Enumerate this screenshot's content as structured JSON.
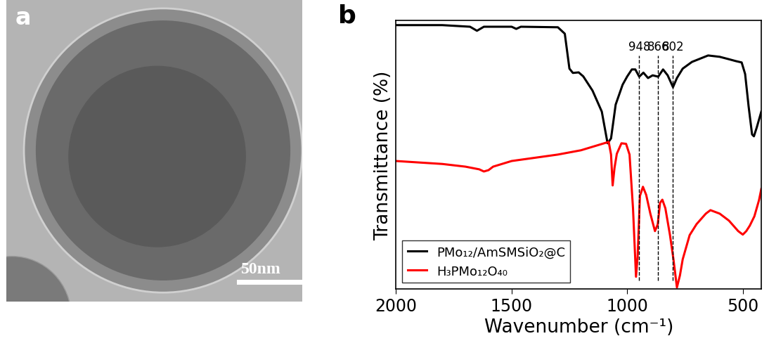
{
  "chart_data": [
    {
      "type": "image",
      "title": "a",
      "annotations": [
        {
          "text": "50nm"
        }
      ]
    },
    {
      "type": "line",
      "title": "b",
      "x_label": "Wavenumber (cm⁻¹)",
      "y_label": "Transmittance (%)",
      "xlim": [
        2000,
        420
      ],
      "xticks": [
        2000,
        1500,
        1000,
        500
      ],
      "ylim": [
        0,
        100
      ],
      "yticks": [],
      "tick_labels": "x",
      "legend": "lower left",
      "series": [
        {
          "name": "PMo₁₂/AmSMSiO₂@C",
          "color": "#000000",
          "line_style": "solid",
          "x": [
            2000,
            1800,
            1680,
            1650,
            1620,
            1500,
            1480,
            1460,
            1300,
            1270,
            1250,
            1235,
            1210,
            1190,
            1150,
            1110,
            1085,
            1070,
            1050,
            1020,
            1000,
            980,
            965,
            948,
            930,
            910,
            890,
            866,
            845,
            825,
            802,
            785,
            760,
            720,
            650,
            600,
            560,
            530,
            505,
            490,
            475,
            460,
            452,
            440,
            430,
            420
          ],
          "values": [
            98.2,
            98.2,
            97.6,
            96.1,
            97.6,
            97.6,
            96.8,
            97.6,
            97.4,
            95,
            82,
            80.4,
            80.6,
            79.1,
            73.8,
            66,
            54.2,
            56,
            68.6,
            76,
            79.1,
            81.7,
            81.7,
            79,
            80.5,
            78.5,
            79.5,
            79,
            81.7,
            79.5,
            75.1,
            78.5,
            82,
            84.5,
            86.9,
            86.4,
            85.5,
            84.8,
            84.3,
            80,
            68,
            57.5,
            56.8,
            60,
            63,
            66
          ]
        },
        {
          "name": "H₃PMo₁₂O₄₀",
          "color": "#ff0000",
          "line_style": "solid",
          "x": [
            2000,
            1800,
            1700,
            1640,
            1620,
            1600,
            1580,
            1500,
            1300,
            1200,
            1100,
            1080,
            1070,
            1063,
            1055,
            1045,
            1025,
            1005,
            990,
            975,
            962,
            955,
            945,
            932,
            918,
            900,
            880,
            868,
            858,
            848,
            835,
            815,
            800,
            785,
            772,
            760,
            730,
            700,
            660,
            640,
            600,
            560,
            520,
            500,
            485,
            470,
            450,
            430,
            420
          ],
          "values": [
            47.6,
            46.5,
            45.5,
            44.5,
            43.7,
            44.2,
            45.5,
            47.6,
            50,
            51.6,
            54.2,
            54.7,
            50,
            38.5,
            45,
            50.3,
            54.2,
            54,
            50,
            30,
            4.5,
            12,
            34.6,
            38,
            35,
            28,
            21.5,
            24,
            32,
            33.2,
            30,
            20,
            11,
            0.5,
            5,
            11,
            20,
            24.1,
            28,
            29.3,
            28,
            25.4,
            21.5,
            20.2,
            21.5,
            23.5,
            27,
            33,
            37.2
          ]
        }
      ],
      "annotations": [
        {
          "text": "948",
          "x": 948
        },
        {
          "text": "866",
          "x": 866
        },
        {
          "text": "802",
          "x": 802
        }
      ]
    }
  ]
}
